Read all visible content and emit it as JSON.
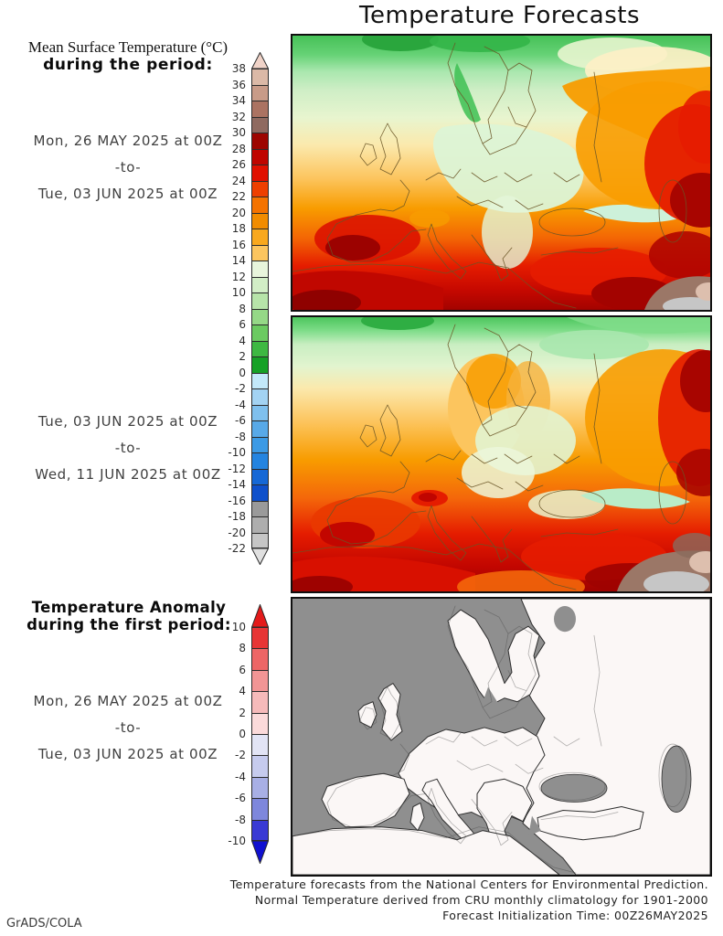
{
  "title": "Temperature Forecasts",
  "header": {
    "line1": "Mean Surface Temperature (°C)",
    "line2": "during the period:"
  },
  "periods": {
    "p1": {
      "from": "Mon, 26 MAY 2025 at 00Z",
      "sep": "-to-",
      "to": "Tue, 03 JUN 2025 at 00Z"
    },
    "p2": {
      "from": "Tue, 03 JUN 2025 at 00Z",
      "sep": "-to-",
      "to": "Wed, 11 JUN 2025 at 00Z"
    }
  },
  "anomaly": {
    "heading_line1": "Temperature Anomaly",
    "heading_line2": "during the first period:",
    "period": {
      "from": "Mon, 26 MAY 2025 at 00Z",
      "sep": "-to-",
      "to": "Tue, 03 JUN 2025 at 00Z"
    }
  },
  "temperature_colorbar": {
    "unit_ticks": [
      38,
      36,
      34,
      32,
      30,
      28,
      26,
      24,
      22,
      20,
      18,
      16,
      14,
      12,
      10,
      8,
      6,
      4,
      2,
      0,
      -2,
      -4,
      -6,
      -8,
      -10,
      -12,
      -14,
      -16,
      -18,
      -20,
      -22
    ],
    "segment_colors_top_to_bottom": [
      "#dbb9a7",
      "#c89b88",
      "#ab7362",
      "#8f6a60",
      "#9d0500",
      "#bf0500",
      "#e01000",
      "#ee3f00",
      "#f57300",
      "#f28c00",
      "#f9a81e",
      "#fcc55f",
      "#e8f5dc",
      "#d2eec6",
      "#b7e4a9",
      "#95d887",
      "#6bca61",
      "#3eb842",
      "#16a126",
      "#c3e9fa",
      "#a3d3f3",
      "#7fc0ee",
      "#58a9e8",
      "#3c9ae5",
      "#2484e0",
      "#1668d6",
      "#0f50cb",
      "#9a9a9a",
      "#aeaeae",
      "#c6c6c6"
    ],
    "arrow_top_color": "#f0d3c8",
    "arrow_bottom_color": "#e0e0e0"
  },
  "anomaly_colorbar": {
    "unit_ticks": [
      10,
      8,
      6,
      4,
      2,
      0,
      -2,
      -4,
      -6,
      -8,
      -10
    ],
    "segment_colors_top_to_bottom": [
      "#e73535",
      "#ed6666",
      "#f29595",
      "#f6baba",
      "#fbdada",
      "#e2e4f5",
      "#c6cbee",
      "#a8afe5",
      "#7e87dc",
      "#3a3ad4"
    ],
    "arrow_top_color": "#e31a1a",
    "arrow_bottom_color": "#1010d0"
  },
  "footer": {
    "line1": "Temperature forecasts from the National Centers for Environmental Prediction.",
    "line2": "Normal Temperature derived from CRU monthly climatology for 1901-2000",
    "line3": "Forecast Initialization Time: 00Z26MAY2025"
  },
  "credit": "GrADS/COLA"
}
